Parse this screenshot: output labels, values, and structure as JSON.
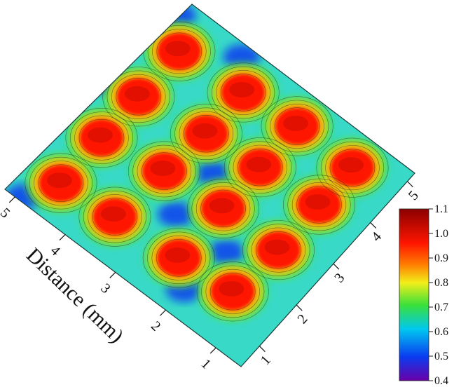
{
  "chart_data": {
    "type": "heatmap",
    "view": "3d-surface-contour",
    "xlabel": "Distance (mm)",
    "ylabel": "",
    "x_ticks": [
      "1",
      "2",
      "3",
      "4",
      "5"
    ],
    "y_ticks": [
      "1",
      "2",
      "3",
      "4",
      "5"
    ],
    "xlim": [
      0.5,
      5.2
    ],
    "ylim": [
      0.5,
      5.2
    ],
    "colorbar": {
      "ticks": [
        "0.4",
        "0.5",
        "0.6",
        "0.7",
        "0.8",
        "0.9",
        "1.0",
        "1.1"
      ],
      "range": [
        0.4,
        1.1
      ],
      "colormap": "rainbow",
      "colors": [
        "#6a00a8",
        "#0a3cf0",
        "#00c8f0",
        "#39e03a",
        "#f2ef1a",
        "#ff7a00",
        "#ff1500",
        "#8b0000"
      ]
    },
    "peaks": [
      {
        "x": 1.2,
        "y": 4.6,
        "z": 0.93
      },
      {
        "x": 1.3,
        "y": 3.6,
        "z": 0.94
      },
      {
        "x": 1.4,
        "y": 2.4,
        "z": 0.94
      },
      {
        "x": 1.5,
        "y": 1.4,
        "z": 0.94
      },
      {
        "x": 2.3,
        "y": 4.6,
        "z": 0.93
      },
      {
        "x": 2.5,
        "y": 3.5,
        "z": 0.94
      },
      {
        "x": 2.6,
        "y": 2.4,
        "z": 0.94
      },
      {
        "x": 2.6,
        "y": 1.3,
        "z": 0.94
      },
      {
        "x": 3.3,
        "y": 4.6,
        "z": 0.93
      },
      {
        "x": 3.5,
        "y": 3.4,
        "z": 0.94
      },
      {
        "x": 3.6,
        "y": 2.4,
        "z": 0.94
      },
      {
        "x": 3.7,
        "y": 1.3,
        "z": 0.94
      },
      {
        "x": 4.4,
        "y": 4.6,
        "z": 0.93
      },
      {
        "x": 4.5,
        "y": 3.4,
        "z": 0.94
      },
      {
        "x": 4.6,
        "y": 2.4,
        "z": 0.94
      },
      {
        "x": 4.6,
        "y": 1.3,
        "z": 0.92
      }
    ]
  }
}
